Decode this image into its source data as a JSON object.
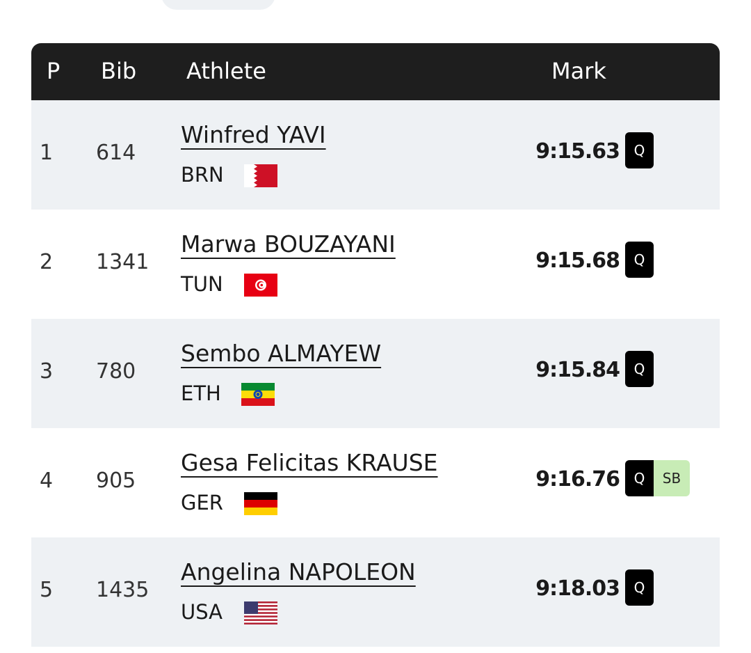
{
  "table": {
    "headers": [
      "P",
      "Bib",
      "Athlete",
      "Mark"
    ],
    "rows": [
      {
        "place": "1",
        "bib": "614",
        "athlete": "Winfred YAVI",
        "country": "BRN",
        "mark": "9:15.63",
        "badges": [
          "Q"
        ]
      },
      {
        "place": "2",
        "bib": "1341",
        "athlete": "Marwa BOUZAYANI",
        "country": "TUN",
        "mark": "9:15.68",
        "badges": [
          "Q"
        ]
      },
      {
        "place": "3",
        "bib": "780",
        "athlete": "Sembo ALMAYEW",
        "country": "ETH",
        "mark": "9:15.84",
        "badges": [
          "Q"
        ]
      },
      {
        "place": "4",
        "bib": "905",
        "athlete": "Gesa Felicitas KRAUSE",
        "country": "GER",
        "mark": "9:16.76",
        "badges": [
          "Q",
          "SB"
        ]
      },
      {
        "place": "5",
        "bib": "1435",
        "athlete": "Angelina NAPOLEON",
        "country": "USA",
        "mark": "9:18.03",
        "badges": [
          "Q"
        ]
      }
    ]
  }
}
